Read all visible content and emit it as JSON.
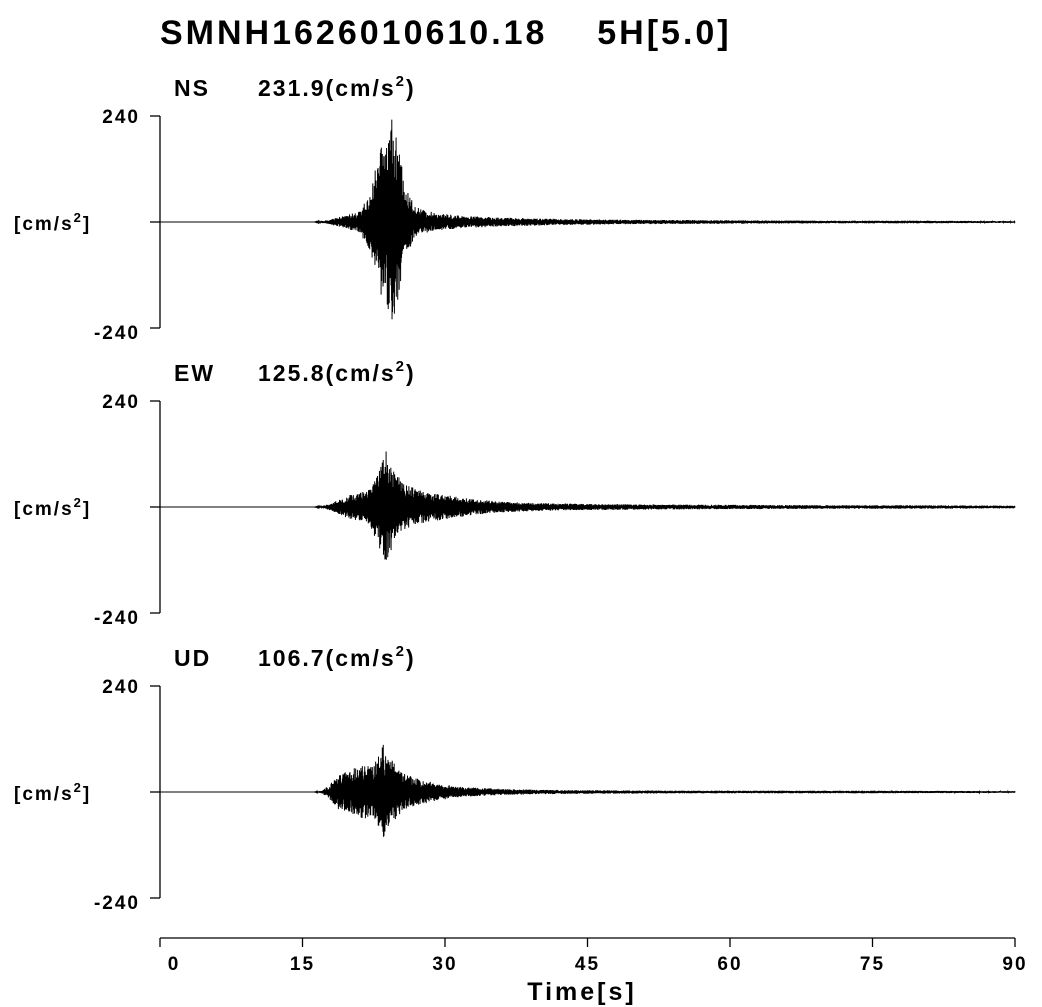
{
  "chart_data": {
    "type": "line",
    "title": "SMNH1626010610.18    5H[5.0]",
    "xlabel": "Time[s]",
    "xlim": [
      0,
      90
    ],
    "xticks": [
      0,
      15,
      30,
      45,
      60,
      75,
      90
    ],
    "ylim": [
      -240,
      240
    ],
    "ytick_top": "240",
    "ytick_bottom": "-240",
    "ylabel": "[cm/s",
    "ylabel_sup": "2",
    "ylabel_close": "]",
    "grid": false,
    "panels": [
      {
        "component": "NS",
        "peak_text": "231.9(cm/s",
        "peak_sup": "2",
        "peak_close": ")",
        "peak": 231.9,
        "envelope": [
          [
            16.2,
            0
          ],
          [
            17.0,
            2
          ],
          [
            18.0,
            6
          ],
          [
            19.0,
            12
          ],
          [
            20.0,
            18
          ],
          [
            21.0,
            24
          ],
          [
            22.0,
            60
          ],
          [
            23.0,
            150
          ],
          [
            23.8,
            200
          ],
          [
            24.4,
            231.9
          ],
          [
            25.0,
            180
          ],
          [
            25.5,
            120
          ],
          [
            26.0,
            70
          ],
          [
            27.0,
            35
          ],
          [
            28.0,
            25
          ],
          [
            30.0,
            18
          ],
          [
            32.0,
            14
          ],
          [
            34.0,
            12
          ],
          [
            36.0,
            10
          ],
          [
            40.0,
            8
          ],
          [
            45.0,
            6
          ],
          [
            50.0,
            5
          ],
          [
            60.0,
            4
          ],
          [
            70.0,
            3
          ],
          [
            80.0,
            3
          ],
          [
            90.0,
            2
          ]
        ]
      },
      {
        "component": "EW",
        "peak_text": "125.8(cm/s",
        "peak_sup": "2",
        "peak_close": ")",
        "peak": 125.8,
        "envelope": [
          [
            16.2,
            0
          ],
          [
            17.0,
            2
          ],
          [
            18.0,
            8
          ],
          [
            19.0,
            18
          ],
          [
            20.0,
            28
          ],
          [
            21.0,
            32
          ],
          [
            22.0,
            40
          ],
          [
            23.0,
            90
          ],
          [
            23.8,
            125.8
          ],
          [
            24.5,
            90
          ],
          [
            25.5,
            55
          ],
          [
            26.5,
            45
          ],
          [
            28.0,
            35
          ],
          [
            30.0,
            28
          ],
          [
            33.0,
            18
          ],
          [
            36.0,
            12
          ],
          [
            40.0,
            9
          ],
          [
            45.0,
            7
          ],
          [
            50.0,
            6
          ],
          [
            60.0,
            5
          ],
          [
            70.0,
            4
          ],
          [
            80.0,
            4
          ],
          [
            90.0,
            3
          ]
        ]
      },
      {
        "component": "UD",
        "peak_text": "106.7(cm/s",
        "peak_sup": "2",
        "peak_close": ")",
        "peak": 106.7,
        "envelope": [
          [
            16.2,
            0
          ],
          [
            17.0,
            3
          ],
          [
            18.0,
            20
          ],
          [
            18.8,
            40
          ],
          [
            19.5,
            45
          ],
          [
            20.5,
            55
          ],
          [
            21.5,
            60
          ],
          [
            22.5,
            62
          ],
          [
            23.5,
            106.7
          ],
          [
            24.5,
            70
          ],
          [
            25.5,
            45
          ],
          [
            26.5,
            35
          ],
          [
            27.5,
            28
          ],
          [
            29.0,
            20
          ],
          [
            31.0,
            13
          ],
          [
            33.0,
            10
          ],
          [
            36.0,
            7
          ],
          [
            40.0,
            5
          ],
          [
            45.0,
            4
          ],
          [
            55.0,
            3
          ],
          [
            65.0,
            3
          ],
          [
            75.0,
            3
          ],
          [
            90.0,
            2
          ]
        ]
      }
    ]
  }
}
